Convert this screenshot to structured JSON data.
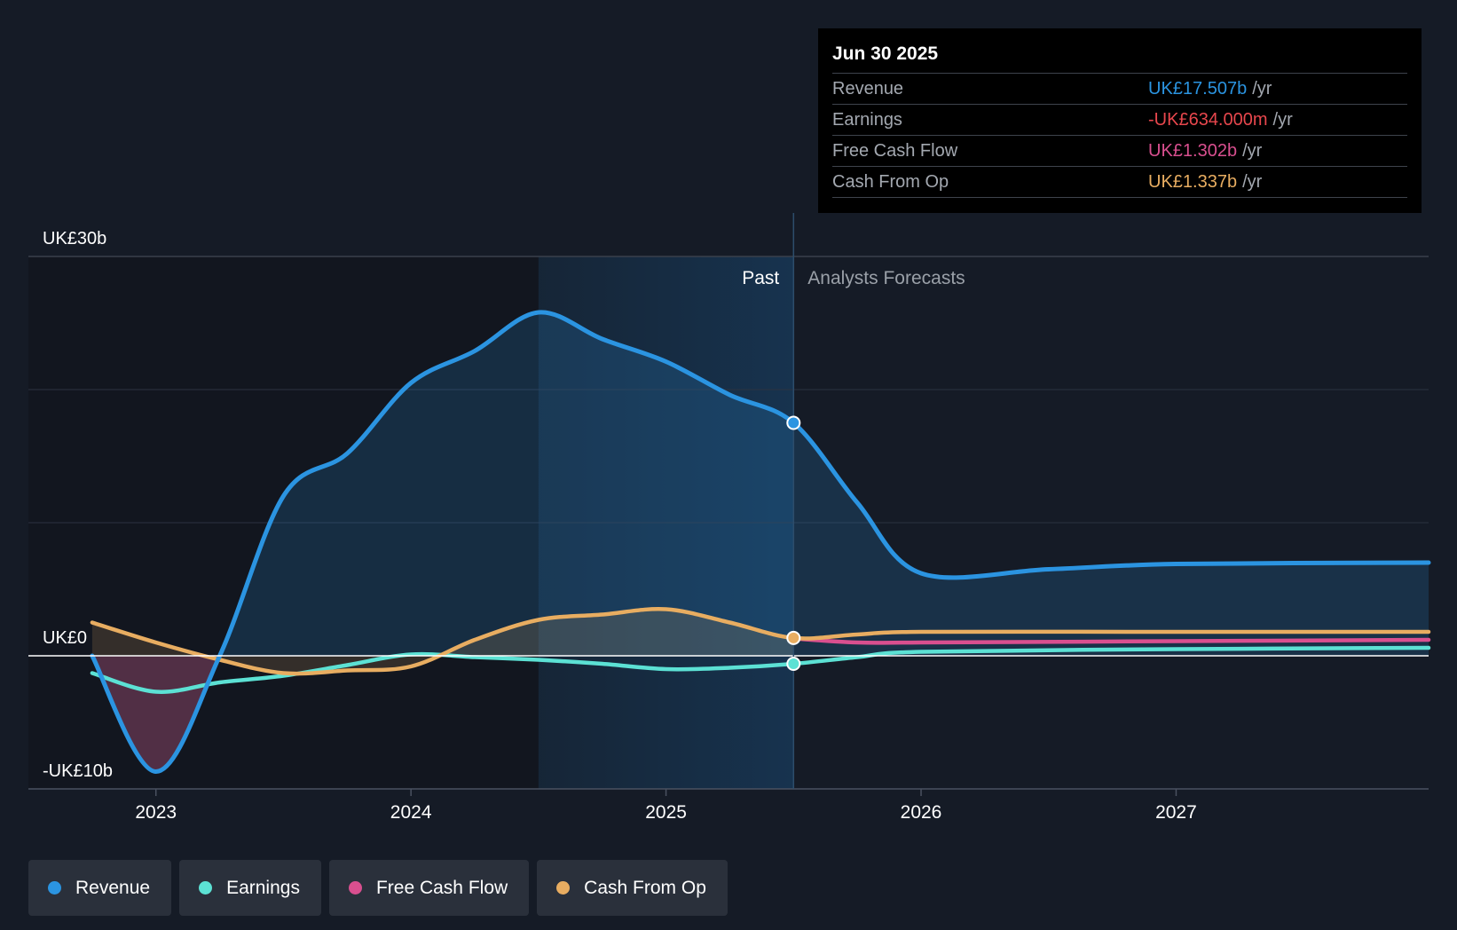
{
  "chart_data": {
    "type": "area",
    "title": "",
    "y_ticks": [
      {
        "label": "UK£30b",
        "value": 30
      },
      {
        "label": "UK£0",
        "value": 0
      },
      {
        "label": "-UK£10b",
        "value": -10
      }
    ],
    "ylim": [
      -10,
      30
    ],
    "grid_values": [
      20,
      10
    ],
    "x_ticks": [
      {
        "label": "2023",
        "value": 2023
      },
      {
        "label": "2024",
        "value": 2024
      },
      {
        "label": "2025",
        "value": 2025
      },
      {
        "label": "2026",
        "value": 2026
      },
      {
        "label": "2027",
        "value": 2027
      }
    ],
    "xlim": [
      2022.5,
      2027.99
    ],
    "past_label": "Past",
    "forecast_label": "Analysts Forecasts",
    "divider_x": 2025.5,
    "highlight_start_x": 2024.5,
    "series": [
      {
        "name": "Revenue",
        "color": "#2b94e1",
        "points": [
          [
            2022.75,
            0
          ],
          [
            2023,
            -8.7
          ],
          [
            2023.25,
            0
          ],
          [
            2023.5,
            12
          ],
          [
            2023.75,
            15.2
          ],
          [
            2024,
            20.5
          ],
          [
            2024.25,
            22.9
          ],
          [
            2024.5,
            25.8
          ],
          [
            2024.75,
            23.8
          ],
          [
            2025,
            22.1
          ],
          [
            2025.25,
            19.6
          ],
          [
            2025.5,
            17.5
          ],
          [
            2025.75,
            11.5
          ],
          [
            2026,
            6.2
          ],
          [
            2026.5,
            6.5
          ],
          [
            2027,
            6.9
          ],
          [
            2027.99,
            7.0
          ]
        ]
      },
      {
        "name": "Earnings",
        "color": "#5ce1d4",
        "points": [
          [
            2022.75,
            -1.3
          ],
          [
            2023,
            -2.7
          ],
          [
            2023.25,
            -2.0
          ],
          [
            2023.5,
            -1.5
          ],
          [
            2023.75,
            -0.7
          ],
          [
            2024,
            0.1
          ],
          [
            2024.25,
            -0.1
          ],
          [
            2024.5,
            -0.3
          ],
          [
            2024.75,
            -0.6
          ],
          [
            2025,
            -1.0
          ],
          [
            2025.25,
            -0.9
          ],
          [
            2025.5,
            -0.6
          ],
          [
            2025.75,
            -0.1
          ],
          [
            2026,
            0.3
          ],
          [
            2027,
            0.5
          ],
          [
            2027.99,
            0.6
          ]
        ]
      },
      {
        "name": "Free Cash Flow",
        "color": "#d94f8f",
        "points": [
          [
            2025.5,
            1.3
          ],
          [
            2025.75,
            1.0
          ],
          [
            2026,
            1.0
          ],
          [
            2027,
            1.1
          ],
          [
            2027.99,
            1.2
          ]
        ]
      },
      {
        "name": "Cash From Op",
        "color": "#e8ad61",
        "points": [
          [
            2022.75,
            2.5
          ],
          [
            2023,
            1.0
          ],
          [
            2023.25,
            -0.3
          ],
          [
            2023.5,
            -1.3
          ],
          [
            2023.75,
            -1.1
          ],
          [
            2024,
            -0.8
          ],
          [
            2024.25,
            1.2
          ],
          [
            2024.5,
            2.7
          ],
          [
            2024.75,
            3.1
          ],
          [
            2025,
            3.5
          ],
          [
            2025.25,
            2.5
          ],
          [
            2025.5,
            1.34
          ],
          [
            2025.75,
            1.6
          ],
          [
            2026,
            1.8
          ],
          [
            2027,
            1.8
          ],
          [
            2027.99,
            1.8
          ]
        ]
      }
    ],
    "markers": [
      {
        "series": "Revenue",
        "x": 2025.5,
        "value": 17.5
      },
      {
        "series": "Cash From Op",
        "x": 2025.5,
        "value": 1.34
      },
      {
        "series": "Earnings",
        "x": 2025.5,
        "value": -0.6
      }
    ]
  },
  "tooltip": {
    "date": "Jun 30 2025",
    "rows": [
      {
        "label": "Revenue",
        "value": "UK£17.507b",
        "unit": "/yr",
        "color": "#2b94e1"
      },
      {
        "label": "Earnings",
        "value": "-UK£634.000m",
        "unit": "/yr",
        "color": "#e8474d"
      },
      {
        "label": "Free Cash Flow",
        "value": "UK£1.302b",
        "unit": "/yr",
        "color": "#d94f8f"
      },
      {
        "label": "Cash From Op",
        "value": "UK£1.337b",
        "unit": "/yr",
        "color": "#e8ad61"
      }
    ]
  },
  "legend": [
    {
      "label": "Revenue",
      "color": "#2b94e1"
    },
    {
      "label": "Earnings",
      "color": "#5ce1d4"
    },
    {
      "label": "Free Cash Flow",
      "color": "#d94f8f"
    },
    {
      "label": "Cash From Op",
      "color": "#e8ad61"
    }
  ]
}
